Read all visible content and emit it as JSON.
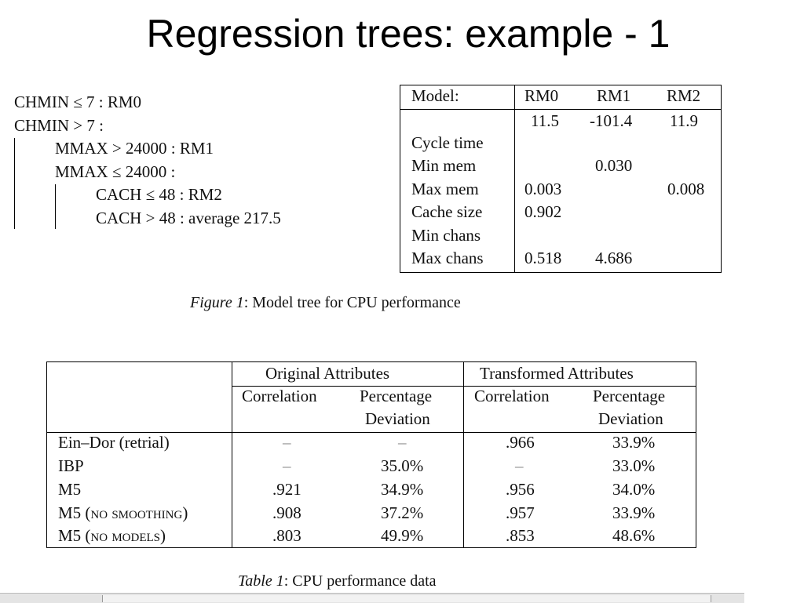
{
  "slide": {
    "title": "Regression trees: example - 1"
  },
  "tree": {
    "lines": [
      "CHMIN ≤ 7 : RM0",
      "CHMIN > 7 :",
      "MMAX > 24000 : RM1",
      "MMAX ≤ 24000 :",
      "CACH ≤ 48 : RM2",
      "CACH > 48 : average 217.5"
    ]
  },
  "model_table": {
    "header": [
      "Model:",
      "RM0",
      "RM1",
      "RM2"
    ],
    "constants": [
      "11.5",
      "-101.4",
      "11.9"
    ],
    "rows": [
      {
        "label": "Cycle time",
        "values": [
          "",
          "",
          ""
        ]
      },
      {
        "label": "Min mem",
        "values": [
          "",
          "0.030",
          ""
        ]
      },
      {
        "label": "Max mem",
        "values": [
          "0.003",
          "",
          "0.008"
        ]
      },
      {
        "label": "Cache size",
        "values": [
          "0.902",
          "",
          ""
        ]
      },
      {
        "label": "Min chans",
        "values": [
          "",
          "",
          ""
        ]
      },
      {
        "label": "Max chans",
        "values": [
          "0.518",
          "4.686",
          ""
        ]
      }
    ]
  },
  "figure_caption": {
    "label": "Figure 1",
    "text": ": Model tree for CPU performance"
  },
  "perf_table": {
    "group_headers": [
      "Original Attributes",
      "Transformed Attributes"
    ],
    "sub_headers": {
      "correlation": "Correlation",
      "percentage_line1": "Percentage",
      "percentage_line2": "Deviation"
    },
    "rows": [
      {
        "label": "Ein–Dor (retrial)",
        "values": [
          "–",
          "–",
          ".966",
          "33.9%"
        ]
      },
      {
        "label": "IBP",
        "values": [
          "–",
          "35.0%",
          "–",
          "33.0%"
        ]
      },
      {
        "label": "M5",
        "values": [
          ".921",
          "34.9%",
          ".956",
          "34.0%"
        ]
      },
      {
        "label": "M5 (no smoothing)",
        "values": [
          ".908",
          "37.2%",
          ".957",
          "33.9%"
        ]
      },
      {
        "label": "M5 (no models)",
        "values": [
          ".803",
          "49.9%",
          ".853",
          "48.6%"
        ]
      }
    ]
  },
  "table_caption": {
    "label": "Table 1",
    "text": ": CPU performance data"
  }
}
